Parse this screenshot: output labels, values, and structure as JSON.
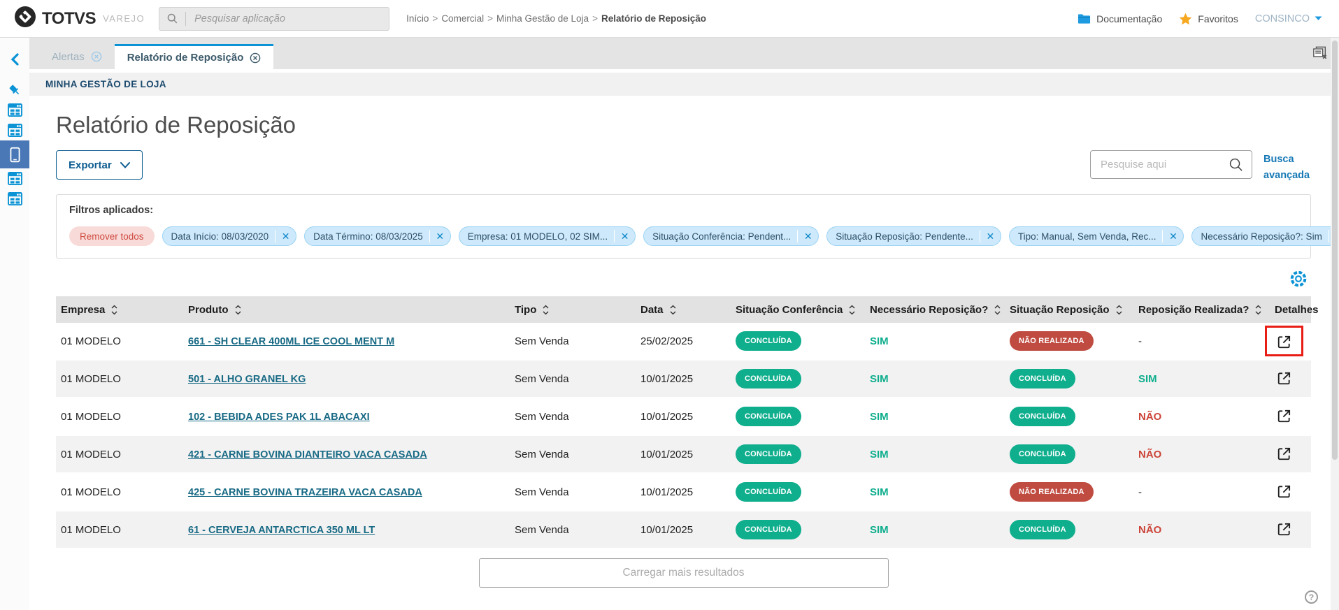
{
  "topbar": {
    "brand": "TOTVS",
    "product": "VAREJO",
    "app_search_placeholder": "Pesquisar aplicação",
    "breadcrumb": [
      "Início",
      "Comercial",
      "Minha Gestão de Loja",
      "Relatório de Reposição"
    ],
    "breadcrumb_separator": ">",
    "documentation_label": "Documentação",
    "favorites_label": "Favoritos",
    "user_menu_label": "CONSINCO"
  },
  "tabs": [
    {
      "label": "Alertas",
      "active": false
    },
    {
      "label": "Relatório de Reposição",
      "active": true
    }
  ],
  "module_header": "MINHA GESTÃO DE LOJA",
  "page": {
    "title": "Relatório de Reposição",
    "export_button": "Exportar",
    "search_placeholder": "Pesquise aqui",
    "advanced_search_label": "Busca avançada",
    "load_more_label": "Carregar mais resultados"
  },
  "filters": {
    "label": "Filtros aplicados:",
    "remove_all_label": "Remover todos",
    "chips": [
      "Data Início: 08/03/2020",
      "Data Término: 08/03/2025",
      "Empresa: 01 MODELO, 02 SIM...",
      "Situação Conferência: Pendent...",
      "Situação Reposição: Pendente...",
      "Tipo: Manual, Sem Venda, Rec...",
      "Necessário Reposição?: Sim"
    ]
  },
  "table": {
    "columns": [
      {
        "label": "Empresa",
        "sortable": true
      },
      {
        "label": "Produto",
        "sortable": true
      },
      {
        "label": "Tipo",
        "sortable": true
      },
      {
        "label": "Data",
        "sortable": true
      },
      {
        "label": "Situação Conferência",
        "sortable": true
      },
      {
        "label": "Necessário Reposição?",
        "sortable": true
      },
      {
        "label": "Situação Reposição",
        "sortable": true
      },
      {
        "label": "Reposição Realizada?",
        "sortable": true
      },
      {
        "label": "Detalhes",
        "sortable": false
      }
    ],
    "rows": [
      {
        "empresa": "01 MODELO",
        "produto": "661 - SH CLEAR 400ML ICE COOL MENT M",
        "tipo": "Sem Venda",
        "data": "25/02/2025",
        "situacao_conferencia": {
          "text": "CONCLUÍDA",
          "status": "success"
        },
        "necessario_reposicao": {
          "text": "SIM",
          "status": "success"
        },
        "situacao_reposicao": {
          "text": "NÃO REALIZADA",
          "status": "danger"
        },
        "reposicao_realizada": {
          "text": "-",
          "status": "neutral"
        },
        "detalhes_highlighted": true
      },
      {
        "empresa": "01 MODELO",
        "produto": "501 - ALHO GRANEL KG",
        "tipo": "Sem Venda",
        "data": "10/01/2025",
        "situacao_conferencia": {
          "text": "CONCLUÍDA",
          "status": "success"
        },
        "necessario_reposicao": {
          "text": "SIM",
          "status": "success"
        },
        "situacao_reposicao": {
          "text": "CONCLUÍDA",
          "status": "success"
        },
        "reposicao_realizada": {
          "text": "SIM",
          "status": "success"
        },
        "detalhes_highlighted": false
      },
      {
        "empresa": "01 MODELO",
        "produto": "102 - BEBIDA ADES PAK 1L ABACAXI",
        "tipo": "Sem Venda",
        "data": "10/01/2025",
        "situacao_conferencia": {
          "text": "CONCLUÍDA",
          "status": "success"
        },
        "necessario_reposicao": {
          "text": "SIM",
          "status": "success"
        },
        "situacao_reposicao": {
          "text": "CONCLUÍDA",
          "status": "success"
        },
        "reposicao_realizada": {
          "text": "NÃO",
          "status": "danger"
        },
        "detalhes_highlighted": false
      },
      {
        "empresa": "01 MODELO",
        "produto": "421 - CARNE BOVINA DIANTEIRO VACA CASADA",
        "tipo": "Sem Venda",
        "data": "10/01/2025",
        "situacao_conferencia": {
          "text": "CONCLUÍDA",
          "status": "success"
        },
        "necessario_reposicao": {
          "text": "SIM",
          "status": "success"
        },
        "situacao_reposicao": {
          "text": "CONCLUÍDA",
          "status": "success"
        },
        "reposicao_realizada": {
          "text": "NÃO",
          "status": "danger"
        },
        "detalhes_highlighted": false
      },
      {
        "empresa": "01 MODELO",
        "produto": "425 - CARNE BOVINA TRAZEIRA VACA CASADA",
        "tipo": "Sem Venda",
        "data": "10/01/2025",
        "situacao_conferencia": {
          "text": "CONCLUÍDA",
          "status": "success"
        },
        "necessario_reposicao": {
          "text": "SIM",
          "status": "success"
        },
        "situacao_reposicao": {
          "text": "NÃO REALIZADA",
          "status": "danger"
        },
        "reposicao_realizada": {
          "text": "-",
          "status": "neutral"
        },
        "detalhes_highlighted": false
      },
      {
        "empresa": "01 MODELO",
        "produto": "61 - CERVEJA ANTARCTICA 350 ML LT",
        "tipo": "Sem Venda",
        "data": "10/01/2025",
        "situacao_conferencia": {
          "text": "CONCLUÍDA",
          "status": "success"
        },
        "necessario_reposicao": {
          "text": "SIM",
          "status": "success"
        },
        "situacao_reposicao": {
          "text": "CONCLUÍDA",
          "status": "success"
        },
        "reposicao_realizada": {
          "text": "NÃO",
          "status": "danger"
        },
        "detalhes_highlighted": false
      }
    ]
  },
  "colors": {
    "accent_blue": "#0b93d5",
    "dark_blue": "#0d5d91",
    "success_green": "#0fae8d",
    "danger_red": "#c04b41",
    "danger_text_red": "#cc453a",
    "link_teal": "#186a85",
    "highlight_red": "#e81d15",
    "favorites_yellow": "#f6a821",
    "selected_sidebar_blue": "#4a78b6"
  }
}
